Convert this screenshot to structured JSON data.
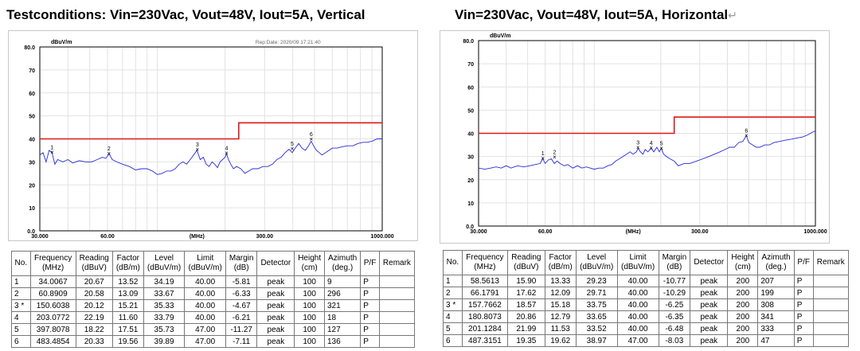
{
  "headings": {
    "left": "Testconditions: Vin=230Vac, Vout=48V, Iout=5A, Vertical",
    "right": "Vin=230Vac, Vout=48V, Iout=5A, Horizontal",
    "right_mark": "↵"
  },
  "colors": {
    "trace": "#2a2ad8",
    "limit": "#e01818",
    "grid": "#e2e2e2",
    "axis": "#000000"
  },
  "chart_data": [
    {
      "type": "line",
      "ylabel": "dBuV/m",
      "xlabel": "(MHz)",
      "x_scale": "log",
      "xlim": [
        30,
        1000
      ],
      "ylim": [
        0,
        80
      ],
      "y_ticks": [
        "0.0",
        "10",
        "20",
        "30",
        "40",
        "50",
        "60",
        "70",
        "80.0"
      ],
      "x_ticks": [
        {
          "value": 30,
          "label": "30.000"
        },
        {
          "value": 60,
          "label": "60.00"
        },
        {
          "value": 150,
          "label": "(MHz)"
        },
        {
          "value": 300,
          "label": "300.00"
        },
        {
          "value": 1000,
          "label": "1000.000"
        }
      ],
      "grid": true,
      "header_text": "Rep:Date: 2020/09     17:21:40",
      "limit_line": {
        "x": [
          30,
          230,
          230,
          1000
        ],
        "y": [
          40,
          40,
          47,
          47
        ]
      },
      "trace": {
        "x": [
          30,
          31,
          32,
          33,
          34,
          35,
          36,
          38,
          40,
          42,
          45,
          48,
          51,
          54,
          57,
          59,
          61,
          63,
          66,
          70,
          75,
          80,
          85,
          90,
          95,
          100,
          105,
          110,
          115,
          120,
          125,
          130,
          135,
          140,
          145,
          150,
          155,
          160,
          165,
          170,
          175,
          180,
          185,
          190,
          195,
          200,
          203,
          207,
          212,
          218,
          225,
          235,
          245,
          255,
          265,
          280,
          295,
          310,
          325,
          340,
          355,
          370,
          385,
          398,
          410,
          425,
          440,
          455,
          470,
          483,
          495,
          510,
          525,
          540,
          560,
          580,
          600,
          630,
          660,
          700,
          740,
          780,
          820,
          860,
          900,
          950,
          1000
        ],
        "y": [
          33,
          34,
          30,
          35,
          34,
          29,
          31,
          30,
          31,
          29.5,
          30.5,
          30,
          30,
          31,
          32,
          31.5,
          33.5,
          31,
          30,
          29,
          28,
          26.5,
          27,
          27,
          26,
          24.5,
          25,
          26,
          26,
          27,
          29,
          30,
          29,
          31,
          33,
          35,
          31,
          32,
          29,
          28,
          30,
          29,
          27.5,
          30,
          31,
          32,
          33.5,
          31,
          29,
          27,
          28,
          27,
          25,
          26,
          27,
          27,
          28,
          28,
          29,
          31,
          32,
          34,
          35.5,
          34,
          36,
          38,
          36,
          35,
          37,
          39,
          37,
          35,
          34,
          33,
          34,
          35,
          36,
          36,
          36.5,
          37,
          37,
          38,
          38.5,
          38.5,
          39,
          40,
          40
        ]
      },
      "markers": [
        {
          "label": "1",
          "x": 34.0067,
          "y": 34.19
        },
        {
          "label": "2",
          "x": 60.8909,
          "y": 33.67
        },
        {
          "label": "3",
          "x": 150.6038,
          "y": 35.33
        },
        {
          "label": "4",
          "x": 203.0772,
          "y": 33.79
        },
        {
          "label": "5",
          "x": 397.8078,
          "y": 35.73
        },
        {
          "label": "6",
          "x": 483.4854,
          "y": 39.89
        }
      ]
    },
    {
      "type": "line",
      "ylabel": "dBuV/m",
      "xlabel": "(MHz)",
      "x_scale": "log",
      "xlim": [
        30,
        1000
      ],
      "ylim": [
        0,
        80
      ],
      "y_ticks": [
        "0.0",
        "10",
        "20",
        "30",
        "40",
        "50",
        "60",
        "70",
        "80.0"
      ],
      "x_ticks": [
        {
          "value": 30,
          "label": "30.000"
        },
        {
          "value": 60,
          "label": "60.00"
        },
        {
          "value": 150,
          "label": "(MHz)"
        },
        {
          "value": 300,
          "label": "300.00"
        },
        {
          "value": 1000,
          "label": "1000.000"
        }
      ],
      "grid": true,
      "header_text": "",
      "limit_line": {
        "x": [
          30,
          230,
          230,
          1000
        ],
        "y": [
          40,
          40,
          47,
          47
        ]
      },
      "trace": {
        "x": [
          30,
          32,
          34,
          36,
          38,
          40,
          42,
          45,
          48,
          51,
          54,
          57,
          58.5,
          60,
          62,
          64,
          66,
          68,
          70,
          73,
          76,
          80,
          84,
          88,
          92,
          96,
          100,
          105,
          110,
          115,
          120,
          125,
          130,
          135,
          140,
          145,
          150,
          155,
          158,
          162,
          166,
          170,
          175,
          181,
          186,
          192,
          197,
          201,
          206,
          212,
          220,
          230,
          240,
          255,
          270,
          290,
          310,
          330,
          350,
          370,
          390,
          410,
          430,
          450,
          470,
          487,
          500,
          520,
          540,
          560,
          590,
          620,
          650,
          690,
          730,
          780,
          830,
          880,
          930,
          970,
          1000
        ],
        "y": [
          25,
          24.5,
          25,
          25.5,
          25,
          26,
          25,
          26,
          25.5,
          26,
          26.5,
          27,
          29,
          27,
          28.5,
          29,
          27,
          28,
          27,
          26,
          26.5,
          25,
          26,
          25,
          25.5,
          25,
          24.5,
          25,
          25,
          26,
          26.5,
          28,
          29,
          30,
          31,
          32,
          31,
          32,
          33.5,
          32,
          31,
          33,
          32,
          33.5,
          32,
          34,
          32,
          33.5,
          31,
          30,
          29,
          28,
          26,
          27,
          27,
          28,
          29,
          30,
          31,
          32,
          33,
          34,
          34,
          36,
          36.5,
          39,
          36,
          35,
          34,
          34,
          35,
          35,
          36,
          36.5,
          37,
          37.5,
          38,
          38.5,
          39.5,
          40.5,
          41
        ]
      },
      "markers": [
        {
          "label": "1",
          "x": 58.5613,
          "y": 29.23
        },
        {
          "label": "2",
          "x": 66.1791,
          "y": 29.71
        },
        {
          "label": "3",
          "x": 157.7662,
          "y": 33.75
        },
        {
          "label": "4",
          "x": 180.8073,
          "y": 33.65
        },
        {
          "label": "5",
          "x": 201.1284,
          "y": 33.52
        },
        {
          "label": "6",
          "x": 487.3151,
          "y": 38.97
        }
      ]
    }
  ],
  "tables": [
    {
      "headers": [
        "No.",
        "Frequency\n(MHz)",
        "Reading\n(dBuV)",
        "Factor\n(dB/m)",
        "Level\n(dBuV/m)",
        "Limit\n(dBuV/m)",
        "Margin\n(dB)",
        "Detector",
        "Height\n(cm)",
        "Azimuth\n(deg.)",
        "P/F",
        "Remark"
      ],
      "rows": [
        [
          "1",
          "34.0067",
          "20.67",
          "13.52",
          "34.19",
          "40.00",
          "-5.81",
          "peak",
          "100",
          "9",
          "P",
          ""
        ],
        [
          "2",
          "60.8909",
          "20.58",
          "13.09",
          "33.67",
          "40.00",
          "-6.33",
          "peak",
          "100",
          "296",
          "P",
          ""
        ],
        [
          "3 *",
          "150.6038",
          "20.12",
          "15.21",
          "35.33",
          "40.00",
          "-4.67",
          "peak",
          "100",
          "321",
          "P",
          ""
        ],
        [
          "4",
          "203.0772",
          "22.19",
          "11.60",
          "33.79",
          "40.00",
          "-6.21",
          "peak",
          "100",
          "18",
          "P",
          ""
        ],
        [
          "5",
          "397.8078",
          "18.22",
          "17.51",
          "35.73",
          "47.00",
          "-11.27",
          "peak",
          "100",
          "127",
          "P",
          ""
        ],
        [
          "6",
          "483.4854",
          "20.33",
          "19.56",
          "39.89",
          "47.00",
          "-7.11",
          "peak",
          "100",
          "136",
          "P",
          ""
        ]
      ]
    },
    {
      "headers": [
        "No.",
        "Frequency\n(MHz)",
        "Reading\n(dBuV)",
        "Factor\n(dB/m)",
        "Level\n(dBuV/m)",
        "Limit\n(dBuV/m)",
        "Margin\n(dB)",
        "Detector",
        "Height\n(cm)",
        "Azimuth\n(deg.)",
        "P/F",
        "Remark"
      ],
      "rows": [
        [
          "1",
          "58.5613",
          "15.90",
          "13.33",
          "29.23",
          "40.00",
          "-10.77",
          "peak",
          "200",
          "207",
          "P",
          ""
        ],
        [
          "2",
          "66.1791",
          "17.62",
          "12.09",
          "29.71",
          "40.00",
          "-10.29",
          "peak",
          "200",
          "199",
          "P",
          ""
        ],
        [
          "3 *",
          "157.7662",
          "18.57",
          "15.18",
          "33.75",
          "40.00",
          "-6.25",
          "peak",
          "200",
          "308",
          "P",
          ""
        ],
        [
          "4",
          "180.8073",
          "20.86",
          "12.79",
          "33.65",
          "40.00",
          "-6.35",
          "peak",
          "200",
          "341",
          "P",
          ""
        ],
        [
          "5",
          "201.1284",
          "21.99",
          "11.53",
          "33.52",
          "40.00",
          "-6.48",
          "peak",
          "200",
          "333",
          "P",
          ""
        ],
        [
          "6",
          "487.3151",
          "19.35",
          "19.62",
          "38.97",
          "47.00",
          "-8.03",
          "peak",
          "200",
          "47",
          "P",
          ""
        ]
      ]
    }
  ]
}
